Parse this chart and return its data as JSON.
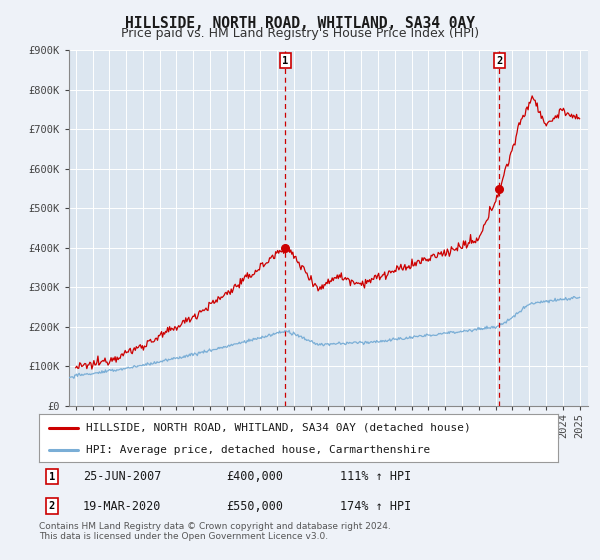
{
  "title": "HILLSIDE, NORTH ROAD, WHITLAND, SA34 0AY",
  "subtitle": "Price paid vs. HM Land Registry's House Price Index (HPI)",
  "background_color": "#eef2f8",
  "plot_bg_color": "#dce6f0",
  "grid_color": "#ffffff",
  "ylim": [
    0,
    900000
  ],
  "yticks": [
    0,
    100000,
    200000,
    300000,
    400000,
    500000,
    600000,
    700000,
    800000,
    900000
  ],
  "ytick_labels": [
    "£0",
    "£100K",
    "£200K",
    "£300K",
    "£400K",
    "£500K",
    "£600K",
    "£700K",
    "£800K",
    "£900K"
  ],
  "xlim_start": 1994.6,
  "xlim_end": 2025.5,
  "xticks": [
    1995,
    1996,
    1997,
    1998,
    1999,
    2000,
    2001,
    2002,
    2003,
    2004,
    2005,
    2006,
    2007,
    2008,
    2009,
    2010,
    2011,
    2012,
    2013,
    2014,
    2015,
    2016,
    2017,
    2018,
    2019,
    2020,
    2021,
    2022,
    2023,
    2024,
    2025
  ],
  "sale1_x": 2007.48,
  "sale1_y": 400000,
  "sale1_label": "1",
  "sale1_date": "25-JUN-2007",
  "sale1_price": "£400,000",
  "sale1_hpi": "111% ↑ HPI",
  "sale2_x": 2020.22,
  "sale2_y": 550000,
  "sale2_label": "2",
  "sale2_date": "19-MAR-2020",
  "sale2_price": "£550,000",
  "sale2_hpi": "174% ↑ HPI",
  "red_line_color": "#cc0000",
  "blue_line_color": "#7aaed6",
  "marker_color": "#cc0000",
  "dashed_line_color": "#cc0000",
  "legend_label_red": "HILLSIDE, NORTH ROAD, WHITLAND, SA34 0AY (detached house)",
  "legend_label_blue": "HPI: Average price, detached house, Carmarthenshire",
  "footer_text": "Contains HM Land Registry data © Crown copyright and database right 2024.\nThis data is licensed under the Open Government Licence v3.0.",
  "title_fontsize": 10.5,
  "subtitle_fontsize": 9,
  "axis_fontsize": 7.5,
  "legend_fontsize": 8,
  "footer_fontsize": 6.5,
  "annot_fontsize": 8.5
}
